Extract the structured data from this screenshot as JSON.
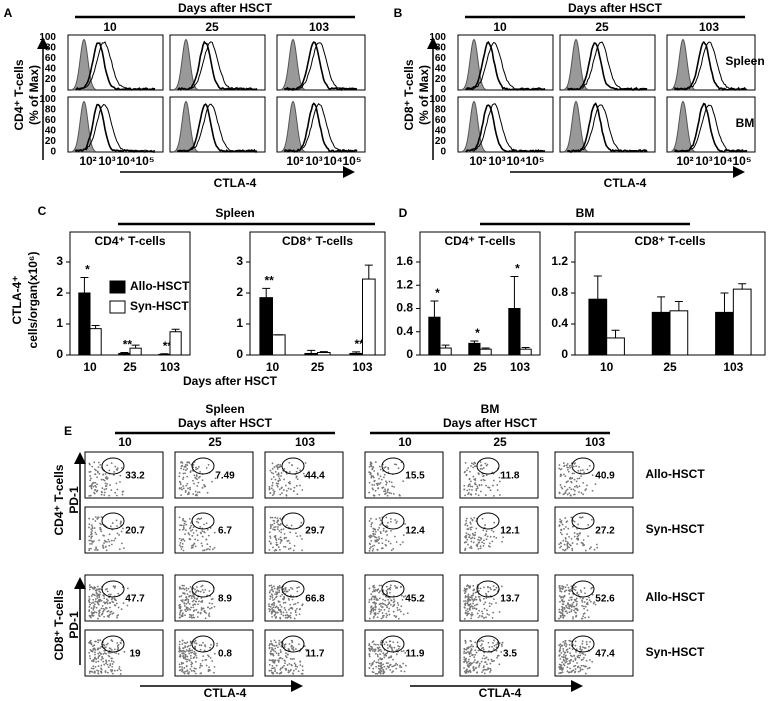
{
  "panels": {
    "A": {
      "letter": "A",
      "header": "Days after HSCT",
      "columns": [
        "10",
        "25",
        "103"
      ],
      "ylabel": "CD4⁺ T-cells",
      "ylabel2": "(% of Max)",
      "yticks": [
        0,
        20,
        40,
        60,
        80,
        100
      ],
      "xticks": [
        "10²",
        "10³",
        "10⁴",
        "10⁵"
      ],
      "xlabel": "CTLA-4"
    },
    "B": {
      "letter": "B",
      "header": "Days after HSCT",
      "columns": [
        "10",
        "25",
        "103"
      ],
      "ylabel": "CD8⁺ T-cells",
      "ylabel2": "(% of Max)",
      "yticks": [
        0,
        20,
        40,
        60,
        80,
        100
      ],
      "xticks": [
        "10²",
        "10³",
        "10⁴",
        "10⁵"
      ],
      "xlabel": "CTLA-4",
      "rows": [
        "Spleen",
        "BM"
      ]
    },
    "C": {
      "letter": "C",
      "header": "Spleen",
      "ylabel": "CTLA-4⁺",
      "ylabel2": "cells/organ(x10⁶)",
      "xlabel": "Days after HSCT"
    },
    "D": {
      "letter": "D",
      "header": "BM"
    },
    "E": {
      "letter": "E",
      "groups": [
        {
          "name": "Spleen",
          "header": "Days after HSCT",
          "columns": [
            "10",
            "25",
            "103"
          ]
        },
        {
          "name": "BM",
          "header": "Days after HSCT",
          "columns": [
            "10",
            "25",
            "103"
          ]
        }
      ],
      "rows": [
        {
          "label": "Allo-HSCT",
          "values": [
            33.2,
            7.49,
            44.4,
            15.5,
            11.8,
            40.9
          ]
        },
        {
          "label": "Syn-HSCT",
          "values": [
            20.7,
            6.7,
            29.7,
            12.4,
            12.1,
            27.2
          ]
        },
        {
          "label": "Allo-HSCT",
          "values": [
            47.7,
            8.9,
            66.8,
            45.2,
            13.7,
            52.6
          ]
        },
        {
          "label": "Syn-HSCT",
          "values": [
            19,
            0.8,
            11.7,
            11.9,
            3.5,
            47.4
          ]
        }
      ],
      "ylabels": [
        {
          "cell": "CD4⁺ T-cells",
          "marker": "PD-1"
        },
        {
          "cell": "CD8⁺ T-cells",
          "marker": "PD-1"
        }
      ],
      "xlabel": "CTLA-4"
    }
  },
  "chart_data": [
    {
      "type": "bar",
      "title": "CD4⁺ T-cells",
      "categories": [
        "10",
        "25",
        "103"
      ],
      "ylim": [
        0,
        3
      ],
      "yticks": [
        0,
        1,
        2,
        3
      ],
      "legend": "upper right",
      "series": [
        {
          "name": "Allo-HSCT",
          "color": "#000000",
          "values": [
            2.0,
            0.05,
            0.02
          ],
          "errors": [
            0.5,
            0.03,
            0.02
          ],
          "labels": [
            "*",
            "**",
            "**"
          ]
        },
        {
          "name": "Syn-HSCT",
          "color": "#ffffff",
          "values": [
            0.85,
            0.22,
            0.75
          ],
          "errors": [
            0.1,
            0.1,
            0.08
          ]
        }
      ]
    },
    {
      "type": "bar",
      "title": "CD8⁺ T-cells",
      "categories": [
        "10",
        "25",
        "103"
      ],
      "ylim": [
        0,
        3
      ],
      "yticks": [
        0,
        1,
        2,
        3
      ],
      "series": [
        {
          "color": "#000000",
          "values": [
            1.85,
            0.05,
            0.05
          ],
          "errors": [
            0.3,
            0.1,
            0.05
          ],
          "labels": [
            "**",
            null,
            "**"
          ]
        },
        {
          "color": "#ffffff",
          "values": [
            0.65,
            0.08,
            2.45
          ],
          "errors": [
            0,
            0.03,
            0.45
          ]
        }
      ]
    },
    {
      "type": "bar",
      "title": "CD4⁺ T-cells",
      "categories": [
        "10",
        "25",
        "103"
      ],
      "ylim": [
        0,
        1.6
      ],
      "yticks": [
        0,
        0.4,
        0.8,
        1.2,
        1.6
      ],
      "series": [
        {
          "color": "#000000",
          "values": [
            0.65,
            0.2,
            0.8
          ],
          "errors": [
            0.28,
            0.04,
            0.55
          ],
          "labels": [
            "*",
            "*",
            "*"
          ]
        },
        {
          "color": "#ffffff",
          "values": [
            0.12,
            0.1,
            0.1
          ],
          "errors": [
            0.05,
            0.02,
            0.03
          ]
        }
      ]
    },
    {
      "type": "bar",
      "title": "CD8⁺ T-cells",
      "categories": [
        "10",
        "25",
        "103"
      ],
      "ylim": [
        0,
        1.2
      ],
      "yticks": [
        0,
        0.4,
        0.8,
        1.2
      ],
      "series": [
        {
          "color": "#000000",
          "values": [
            0.72,
            0.55,
            0.55
          ],
          "errors": [
            0.3,
            0.2,
            0.25
          ]
        },
        {
          "color": "#ffffff",
          "values": [
            0.22,
            0.57,
            0.85
          ],
          "errors": [
            0.1,
            0.12,
            0.07
          ]
        }
      ]
    }
  ]
}
